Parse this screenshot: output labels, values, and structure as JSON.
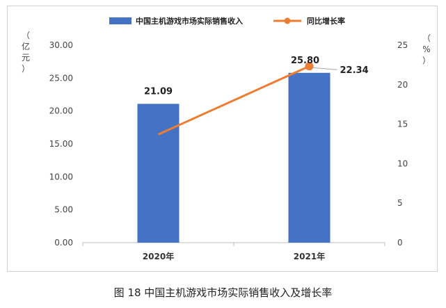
{
  "chart_data": {
    "type": "bar",
    "categories": [
      "2020年",
      "2021年"
    ],
    "series": [
      {
        "name": "中国主机游戏市场实际销售收入",
        "type": "bar",
        "axis": "left",
        "values": [
          21.09,
          25.8
        ],
        "labels": [
          "21.09",
          "25.80"
        ],
        "color": "#4472C4"
      },
      {
        "name": "同比增长率",
        "type": "line",
        "axis": "right",
        "values": [
          13.7,
          22.34
        ],
        "labels": [
          "",
          "22.34"
        ],
        "color": "#ED7D31"
      }
    ],
    "y_left": {
      "label_chars": [
        "（",
        "亿",
        "元",
        "）"
      ],
      "ylim": [
        0,
        30
      ],
      "ticks": [
        "0.00",
        "5.00",
        "10.00",
        "15.00",
        "20.00",
        "25.00",
        "30.00"
      ]
    },
    "y_right": {
      "label_chars": [
        "（",
        "%",
        "）"
      ],
      "ylim": [
        0,
        25
      ],
      "ticks": [
        "0",
        "5",
        "10",
        "15",
        "20",
        "25"
      ]
    },
    "legend_position": "top-center",
    "grid": false
  },
  "caption": "图 18 中国主机游戏市场实际销售收入及增长率"
}
